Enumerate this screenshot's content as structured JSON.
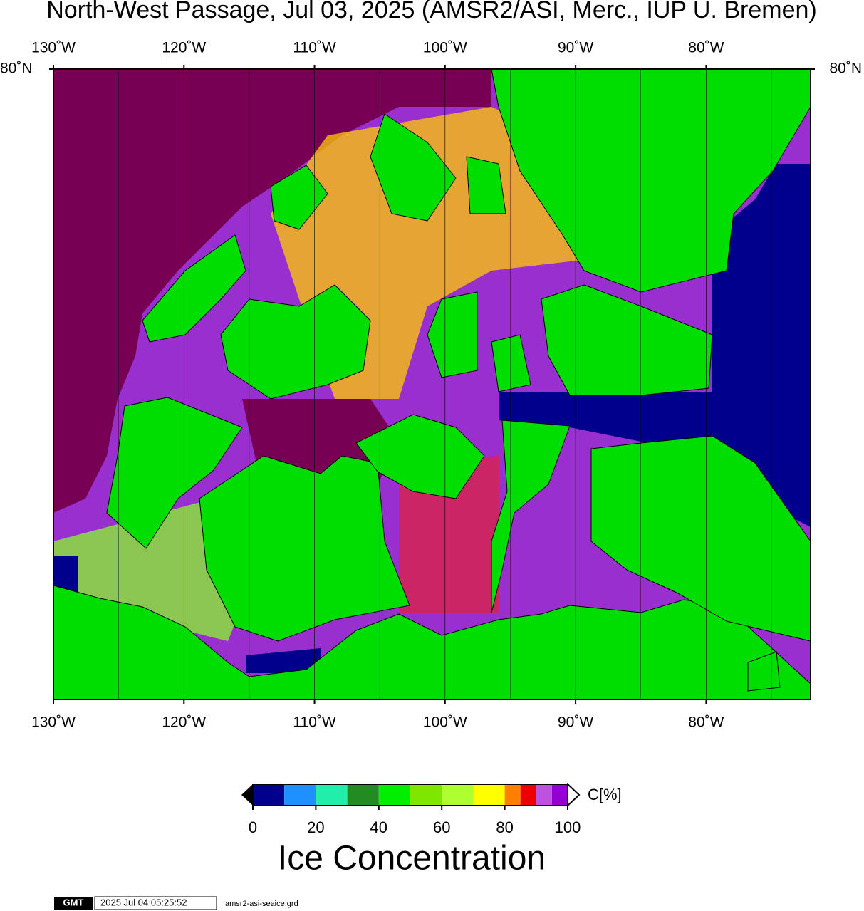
{
  "title": "North-West Passage, Jul 03, 2025 (AMSR2/ASI, Merc., IUP U. Bremen)",
  "map": {
    "xlim": [
      -130,
      -72
    ],
    "xticks": [
      {
        "value": -130,
        "label": "130˚W"
      },
      {
        "value": -120,
        "label": "120˚W"
      },
      {
        "value": -110,
        "label": "110˚W"
      },
      {
        "value": -100,
        "label": "100˚W"
      },
      {
        "value": -90,
        "label": "90˚W"
      },
      {
        "value": -80,
        "label": "80˚W"
      }
    ],
    "lat_label": "80˚N"
  },
  "colorbar": {
    "bins": [
      0,
      10,
      20,
      30,
      40,
      50,
      60,
      70,
      80,
      85,
      90,
      95,
      100
    ],
    "colors": [
      "#00008c",
      "#1e90ff",
      "#20eeaa",
      "#228b22",
      "#00ee00",
      "#7fe600",
      "#adff2f",
      "#ffff00",
      "#ff8000",
      "#ee0000",
      "#c050e0",
      "#9400d3"
    ],
    "ticks": [
      0,
      20,
      40,
      60,
      80,
      100
    ],
    "unit_label": "C[%]",
    "title": "Ice Concentration"
  },
  "footer": {
    "logo": "GMT",
    "timestamp": "2025 Jul 04 05:25:52",
    "filename": "amsr2-asi-seaice.grd"
  }
}
